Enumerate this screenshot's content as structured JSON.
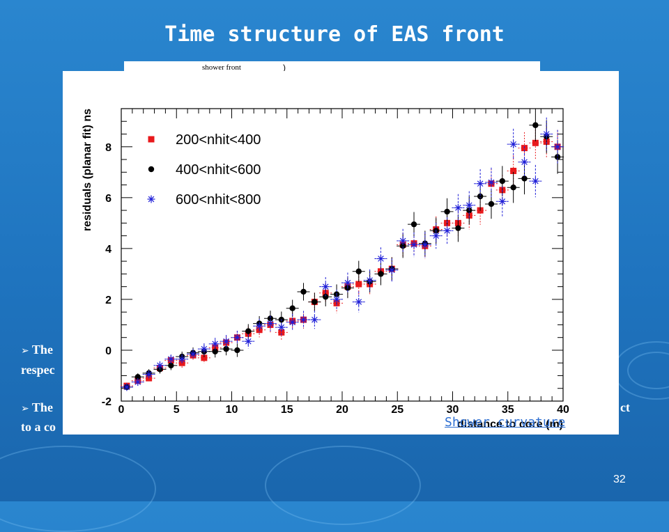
{
  "slide": {
    "title": "Time structure of EAS front",
    "background_figure_label": "shower front",
    "slide_number": "32",
    "bullets": [
      {
        "arrow": "➢",
        "line1": "The",
        "line2": "respec",
        "tail": ""
      },
      {
        "arrow": "➢",
        "line1": "The",
        "line2": "to a co",
        "tail": "ct"
      }
    ],
    "colors": {
      "background": "#1f74bf",
      "title": "#ffffff",
      "link": "#2e6fd2"
    }
  },
  "chart_data": {
    "type": "scatter",
    "title": "",
    "xlabel": "distance to core (m)",
    "ylabel": "residuals (planar fit) ns",
    "xlim": [
      0,
      40
    ],
    "ylim": [
      -2,
      9.5
    ],
    "x_ticks": [
      "0",
      "5",
      "10",
      "15",
      "20",
      "25",
      "30",
      "35",
      "40"
    ],
    "y_ticks": [
      "-2",
      "0",
      "2",
      "4",
      "6",
      "8"
    ],
    "legend_position": "top-left",
    "annotation": "Shower curvature",
    "series": [
      {
        "name": "200<nhit<400",
        "marker": "square",
        "color": "#e8191c",
        "x": [
          0.5,
          1.5,
          2.5,
          3.5,
          4.5,
          5.5,
          6.5,
          7.5,
          8.5,
          9.5,
          10.5,
          11.5,
          12.5,
          13.5,
          14.5,
          15.5,
          16.5,
          17.5,
          18.5,
          19.5,
          20.5,
          21.5,
          22.5,
          23.5,
          24.5,
          25.5,
          26.5,
          27.5,
          28.5,
          29.5,
          30.5,
          31.5,
          32.5,
          33.5,
          34.5,
          35.5,
          36.5,
          37.5,
          38.5,
          39.5
        ],
        "y": [
          -1.4,
          -1.2,
          -1.1,
          -0.7,
          -0.4,
          -0.5,
          -0.2,
          -0.3,
          0.1,
          0.3,
          0.5,
          0.65,
          0.8,
          1.0,
          0.7,
          1.15,
          1.2,
          1.9,
          2.25,
          1.85,
          2.5,
          2.6,
          2.6,
          3.1,
          3.2,
          4.15,
          4.2,
          4.1,
          4.75,
          5.0,
          5.0,
          5.3,
          5.5,
          6.55,
          6.3,
          7.05,
          7.95,
          8.15,
          8.2,
          8.0
        ]
      },
      {
        "name": "400<nhit<600",
        "marker": "circle",
        "color": "#000000",
        "x": [
          0.5,
          1.5,
          2.5,
          3.5,
          4.5,
          5.5,
          6.5,
          7.5,
          8.5,
          9.5,
          10.5,
          11.5,
          12.5,
          13.5,
          14.5,
          15.5,
          16.5,
          17.5,
          18.5,
          19.5,
          20.5,
          21.5,
          22.5,
          23.5,
          24.5,
          25.5,
          26.5,
          27.5,
          28.5,
          29.5,
          30.5,
          31.5,
          32.5,
          33.5,
          34.5,
          35.5,
          36.5,
          37.5,
          38.5,
          39.5
        ],
        "y": [
          -1.45,
          -1.05,
          -0.9,
          -0.75,
          -0.6,
          -0.25,
          -0.1,
          -0.05,
          -0.05,
          0.05,
          0.0,
          0.75,
          1.05,
          1.25,
          1.2,
          1.65,
          2.3,
          1.9,
          2.1,
          2.2,
          2.45,
          3.1,
          2.7,
          3.0,
          3.2,
          4.1,
          4.95,
          4.2,
          4.7,
          5.45,
          4.8,
          5.5,
          6.05,
          5.75,
          6.65,
          6.4,
          6.75,
          8.85,
          8.4,
          7.6
        ]
      },
      {
        "name": "600<nhit<800",
        "marker": "star",
        "color": "#1f1fd8",
        "x": [
          0.5,
          1.5,
          2.5,
          3.5,
          4.5,
          5.5,
          6.5,
          7.5,
          8.5,
          9.5,
          10.5,
          11.5,
          12.5,
          13.5,
          14.5,
          15.5,
          16.5,
          17.5,
          18.5,
          19.5,
          20.5,
          21.5,
          22.5,
          23.5,
          24.5,
          25.5,
          26.5,
          27.5,
          28.5,
          29.5,
          30.5,
          31.5,
          32.5,
          33.5,
          34.5,
          35.5,
          36.5,
          37.5,
          38.5,
          39.5
        ],
        "y": [
          -1.45,
          -1.25,
          -0.95,
          -0.6,
          -0.35,
          -0.35,
          -0.15,
          0.05,
          0.25,
          0.35,
          0.5,
          0.35,
          0.95,
          1.05,
          0.9,
          1.1,
          1.2,
          1.2,
          2.5,
          2.0,
          2.65,
          1.9,
          2.75,
          3.6,
          3.15,
          4.3,
          4.15,
          4.15,
          4.5,
          4.7,
          5.6,
          5.7,
          6.55,
          6.6,
          5.85,
          8.1,
          7.4,
          6.65,
          8.5,
          8.0
        ]
      }
    ]
  }
}
